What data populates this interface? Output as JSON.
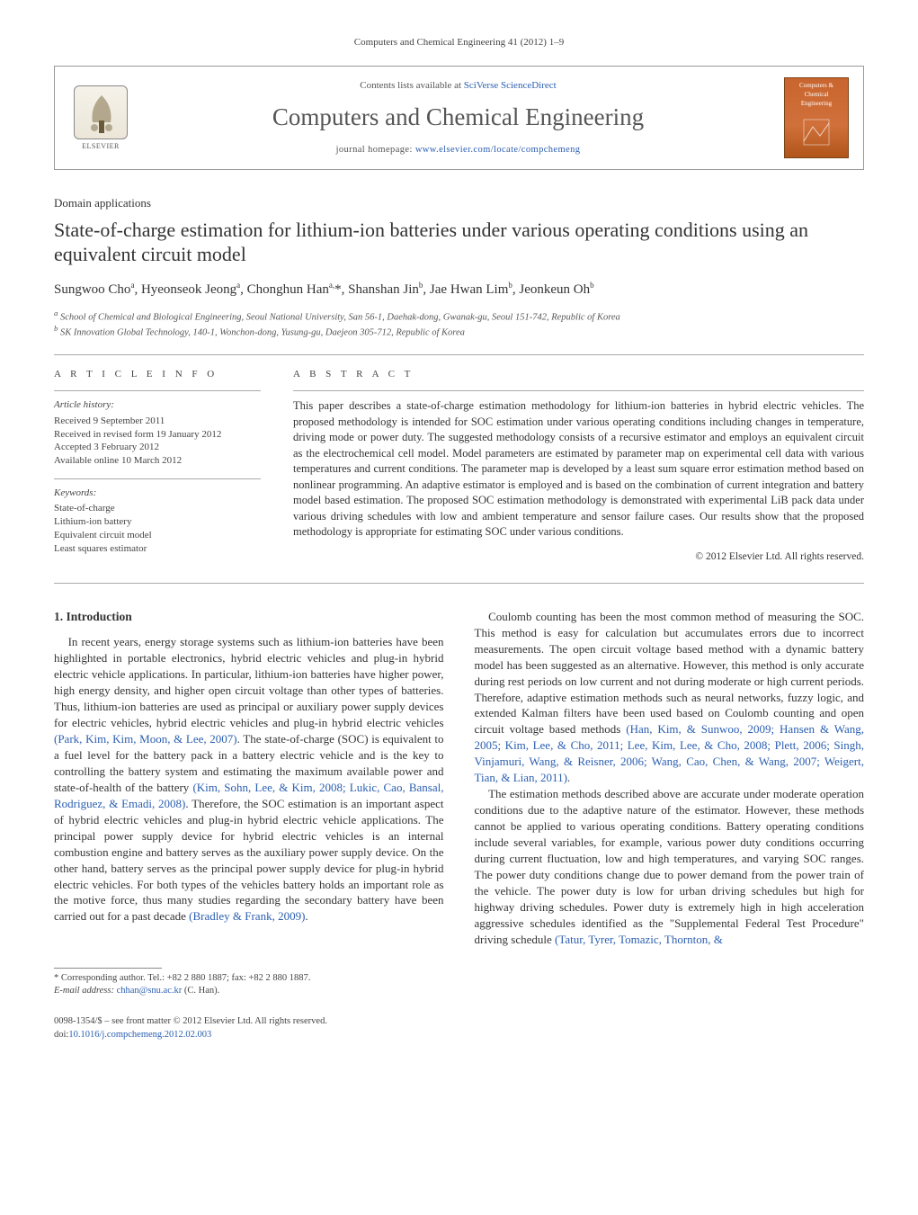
{
  "header": {
    "running_head": "Computers and Chemical Engineering 41 (2012) 1–9"
  },
  "banner": {
    "contents_prefix": "Contents lists available at ",
    "contents_link_text": "SciVerse ScienceDirect",
    "journal_title": "Computers and Chemical Engineering",
    "homepage_prefix": "journal homepage: ",
    "homepage_url": "www.elsevier.com/locate/compchemeng",
    "elsevier_label": "ELSEVIER",
    "cover_text_top": "Computers & Chemical Engineering"
  },
  "article": {
    "section_label": "Domain applications",
    "title": "State-of-charge estimation for lithium-ion batteries under various operating conditions using an equivalent circuit model",
    "authors_html": "Sungwoo Cho<sup>a</sup>, Hyeonseok Jeong<sup>a</sup>, Chonghun Han<sup>a,</sup>*, Shanshan Jin<sup>b</sup>, Jae Hwan Lim<sup>b</sup>, Jeonkeun Oh<sup>b</sup>",
    "affiliations": [
      "a School of Chemical and Biological Engineering, Seoul National University, San 56-1, Daehak-dong, Gwanak-gu, Seoul 151-742, Republic of Korea",
      "b SK Innovation Global Technology, 140-1, Wonchon-dong, Yusung-gu, Daejeon 305-712, Republic of Korea"
    ]
  },
  "article_info": {
    "heading": "A R T I C L E   I N F O",
    "history_label": "Article history:",
    "history_lines": [
      "Received 9 September 2011",
      "Received in revised form 19 January 2012",
      "Accepted 3 February 2012",
      "Available online 10 March 2012"
    ],
    "keywords_label": "Keywords:",
    "keywords": [
      "State-of-charge",
      "Lithium-ion battery",
      "Equivalent circuit model",
      "Least squares estimator"
    ]
  },
  "abstract": {
    "heading": "A B S T R A C T",
    "text": "This paper describes a state-of-charge estimation methodology for lithium-ion batteries in hybrid electric vehicles. The proposed methodology is intended for SOC estimation under various operating conditions including changes in temperature, driving mode or power duty. The suggested methodology consists of a recursive estimator and employs an equivalent circuit as the electrochemical cell model. Model parameters are estimated by parameter map on experimental cell data with various temperatures and current conditions. The parameter map is developed by a least sum square error estimation method based on nonlinear programming. An adaptive estimator is employed and is based on the combination of current integration and battery model based estimation. The proposed SOC estimation methodology is demonstrated with experimental LiB pack data under various driving schedules with low and ambient temperature and sensor failure cases. Our results show that the proposed methodology is appropriate for estimating SOC under various conditions.",
    "copyright": "© 2012 Elsevier Ltd. All rights reserved."
  },
  "body": {
    "section_number": "1.",
    "section_title": "Introduction",
    "p1_a": "In recent years, energy storage systems such as lithium-ion batteries have been highlighted in portable electronics, hybrid electric vehicles and plug-in hybrid electric vehicle applications. In particular, lithium-ion batteries have higher power, high energy density, and higher open circuit voltage than other types of batteries. Thus, lithium-ion batteries are used as principal or auxiliary power supply devices for electric vehicles, hybrid electric vehicles and plug-in hybrid electric vehicles ",
    "p1_cite1": "(Park, Kim, Kim, Moon, & Lee, 2007)",
    "p1_b": ". The state-of-charge (SOC) is equivalent to a fuel level for the battery pack in a battery electric vehicle and is the key to controlling the battery system and estimating the maximum available power and state-of-health of the battery ",
    "p1_cite2": "(Kim, Sohn, Lee, & Kim, 2008; Lukic, Cao, Bansal, Rodriguez, & Emadi, 2008)",
    "p1_c": ". Therefore, the SOC estimation is an important aspect of hybrid electric vehicles and plug-in hybrid electric vehicle applications. The principal power supply device for hybrid electric vehicles is an internal combustion engine and battery serves as the auxiliary power supply device. On the other hand, battery serves as the principal power supply device for plug-in hybrid electric vehicles. For both types of the vehicles battery holds an important role as the motive force, thus many studies ",
    "p1_d": "regarding the secondary battery have been carried out for a past decade ",
    "p1_cite3": "(Bradley & Frank, 2009)",
    "p1_e": ".",
    "p2_a": "Coulomb counting has been the most common method of measuring the SOC. This method is easy for calculation but accumulates errors due to incorrect measurements. The open circuit voltage based method with a dynamic battery model has been suggested as an alternative. However, this method is only accurate during rest periods on low current and not during moderate or high current periods. Therefore, adaptive estimation methods such as neural networks, fuzzy logic, and extended Kalman filters have been used based on Coulomb counting and open circuit voltage based methods ",
    "p2_cite1": "(Han, Kim, & Sunwoo, 2009; Hansen & Wang, 2005; Kim, Lee, & Cho, 2011; Lee, Kim, Lee, & Cho, 2008; Plett, 2006; Singh, Vinjamuri, Wang, & Reisner, 2006; Wang, Cao, Chen, & Wang, 2007; Weigert, Tian, & Lian, 2011)",
    "p2_b": ".",
    "p3_a": "The estimation methods described above are accurate under moderate operation conditions due to the adaptive nature of the estimator. However, these methods cannot be applied to various operating conditions. Battery operating conditions include several variables, for example, various power duty conditions occurring during current fluctuation, low and high temperatures, and varying SOC ranges. The power duty conditions change due to power demand from the power train of the vehicle. The power duty is low for urban driving schedules but high for highway driving schedules. Power duty is extremely high in high acceleration aggressive schedules identified as the \"Supplemental Federal Test Procedure\" driving schedule ",
    "p3_cite1": "(Tatur, Tyrer, Tomazic, Thornton, &"
  },
  "footnotes": {
    "corr": "* Corresponding author. Tel.: +82 2 880 1887; fax: +82 2 880 1887.",
    "email_label": "E-mail address: ",
    "email": "chhan@snu.ac.kr",
    "email_suffix": " (C. Han)."
  },
  "bottom": {
    "issn_line": "0098-1354/$ – see front matter © 2012 Elsevier Ltd. All rights reserved.",
    "doi_prefix": "doi:",
    "doi": "10.1016/j.compchemeng.2012.02.003"
  },
  "colors": {
    "link": "#2b5fb0",
    "text": "#333333",
    "rule": "#aaaaaa",
    "cover_bg": "#c9652f"
  },
  "typography": {
    "body_pt": 13,
    "title_pt": 22,
    "journal_pt": 27,
    "small_pt": 11
  }
}
